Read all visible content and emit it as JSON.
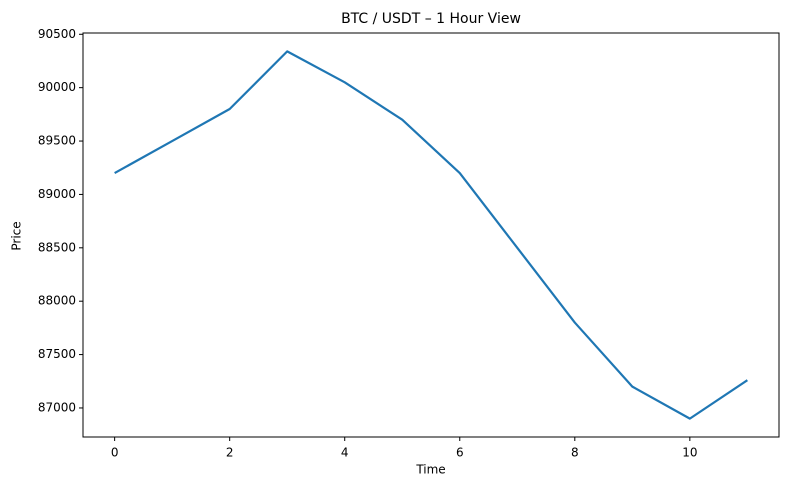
{
  "chart_data": {
    "type": "line",
    "title": "BTC / USDT – 1 Hour View",
    "x_label": "Time",
    "y_label": "Price",
    "x": [
      0,
      1,
      2,
      3,
      4,
      5,
      6,
      7,
      8,
      9,
      10,
      11
    ],
    "series": [
      {
        "name": "BTC/USDT",
        "color": "#1f77b4",
        "values": [
          89200,
          89500,
          89800,
          90340,
          90050,
          89700,
          89200,
          88500,
          87800,
          87200,
          86900,
          87260
        ]
      }
    ],
    "xlim": [
      -0.55,
      11.55
    ],
    "xticks": [
      0,
      2,
      4,
      6,
      8,
      10
    ],
    "ylim": [
      86728,
      90512
    ],
    "yticks": [
      87000,
      87500,
      88000,
      88500,
      89000,
      89500,
      90000,
      90500
    ],
    "grid": false
  }
}
